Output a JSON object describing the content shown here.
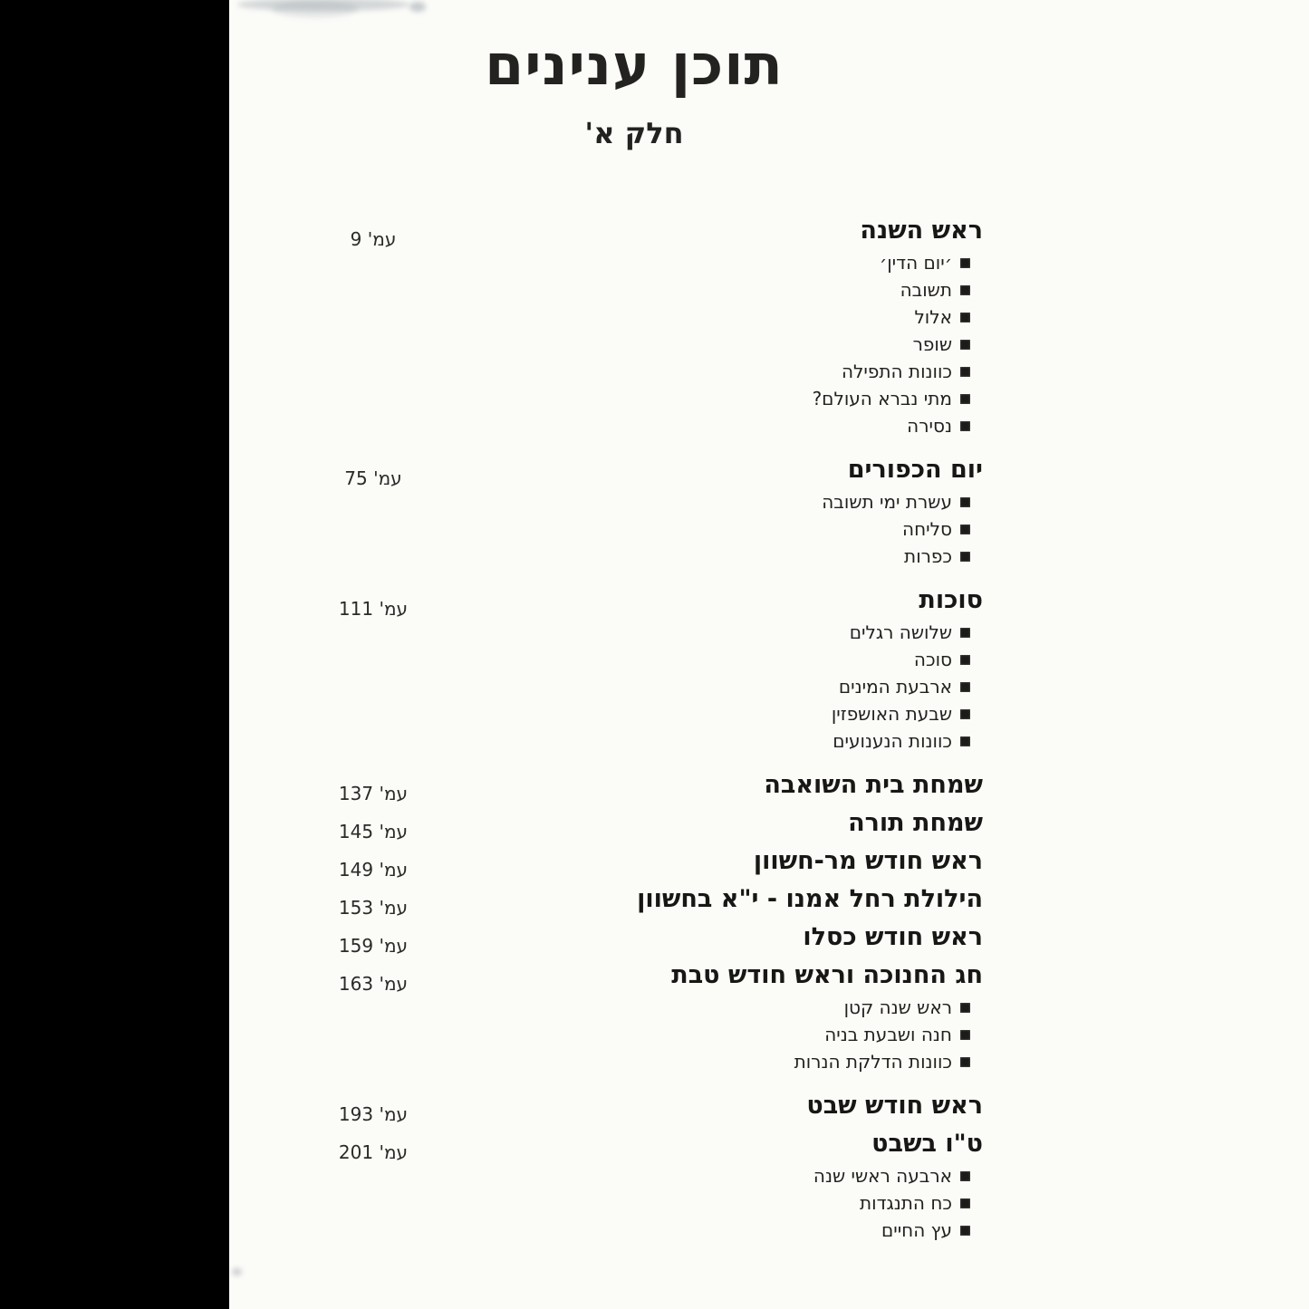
{
  "page": {
    "title": "תוכן ענינים",
    "subtitle": "חלק א'"
  },
  "toc": {
    "sections": [
      {
        "title": "ראש השנה",
        "page": "עמ' 9",
        "items": [
          "׳יום הדין׳",
          "תשובה",
          "אלול",
          "שופר",
          "כוונות התפילה",
          "מתי נברא העולם?",
          "נסירה"
        ]
      },
      {
        "title": "יום הכפורים",
        "page": "עמ' 75",
        "items": [
          "עשרת ימי תשובה",
          "סליחה",
          "כפרות"
        ]
      },
      {
        "title": "סוכות",
        "page": "עמ' 111",
        "items": [
          "שלושה רגלים",
          "סוכה",
          "ארבעת המינים",
          "שבעת האושפזין",
          "כוונות הנענועים"
        ]
      },
      {
        "title": "שמחת בית השואבה",
        "page": "עמ' 137",
        "items": []
      },
      {
        "title": "שמחת תורה",
        "page": "עמ' 145",
        "items": []
      },
      {
        "title": "ראש חודש מר-חשוון",
        "page": "עמ' 149",
        "items": []
      },
      {
        "title": "הילולת רחל אמנו - י\"א בחשוון",
        "page": "עמ' 153",
        "items": []
      },
      {
        "title": "ראש חודש כסלו",
        "page": "עמ' 159",
        "items": []
      },
      {
        "title": "חג החנוכה וראש חודש טבת",
        "page": "עמ' 163",
        "items": [
          "ראש שנה קטן",
          "חנה ושבעת בניה",
          "כוונות הדלקת הנרות"
        ]
      },
      {
        "title": "ראש חודש שבט",
        "page": "עמ' 193",
        "items": []
      },
      {
        "title": "ט\"ו בשבט",
        "page": "עמ' 201",
        "items": [
          "ארבעה ראשי שנה",
          "כח התנגדות",
          "עץ החיים"
        ]
      }
    ]
  },
  "colors": {
    "text": "#1f1f1f",
    "background": "#fbfbf8",
    "scan_bar": "#000000"
  }
}
